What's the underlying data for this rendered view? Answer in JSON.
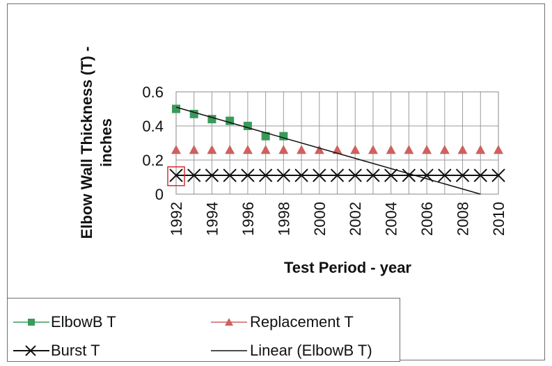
{
  "chart_data": {
    "type": "line",
    "xlabel": "Test Period - year",
    "ylabel": "Elbow Wall Thickness (T) - inches",
    "x": [
      1992,
      1993,
      1994,
      1995,
      1996,
      1997,
      1998,
      1999,
      2000,
      2001,
      2002,
      2003,
      2004,
      2005,
      2006,
      2007,
      2008,
      2009,
      2010
    ],
    "x_tick_labels": [
      "1992",
      "1994",
      "1996",
      "1998",
      "2000",
      "2002",
      "2004",
      "2006",
      "2008",
      "2010"
    ],
    "y_tick_labels": [
      "0",
      "0.2",
      "0.4",
      "0.6"
    ],
    "xlim": [
      1992,
      2010
    ],
    "ylim": [
      0,
      0.6
    ],
    "grid": true,
    "legend_position": "bottom",
    "series": [
      {
        "name": "ElbowB T",
        "marker": "square",
        "color": "#3a9a5a",
        "x": [
          1992,
          1993,
          1994,
          1995,
          1996,
          1997,
          1998
        ],
        "values": [
          0.5,
          0.47,
          0.44,
          0.43,
          0.4,
          0.34,
          0.34
        ]
      },
      {
        "name": "Replacement T",
        "marker": "triangle",
        "color": "#d06060",
        "x": [
          1992,
          1993,
          1994,
          1995,
          1996,
          1997,
          1998,
          1999,
          2000,
          2001,
          2002,
          2003,
          2004,
          2005,
          2006,
          2007,
          2008,
          2009,
          2010
        ],
        "values": [
          0.26,
          0.26,
          0.26,
          0.26,
          0.26,
          0.26,
          0.26,
          0.26,
          0.26,
          0.26,
          0.26,
          0.26,
          0.26,
          0.26,
          0.26,
          0.26,
          0.26,
          0.26,
          0.26
        ]
      },
      {
        "name": "Burst T",
        "marker": "x",
        "color": "#111111",
        "x": [
          1992,
          1993,
          1994,
          1995,
          1996,
          1997,
          1998,
          1999,
          2000,
          2001,
          2002,
          2003,
          2004,
          2005,
          2006,
          2007,
          2008,
          2009,
          2010
        ],
        "values": [
          0.11,
          0.11,
          0.11,
          0.11,
          0.11,
          0.11,
          0.11,
          0.11,
          0.11,
          0.11,
          0.11,
          0.11,
          0.11,
          0.11,
          0.11,
          0.11,
          0.11,
          0.11,
          0.11
        ]
      },
      {
        "name": "Linear (ElbowB T)",
        "marker": "none",
        "color": "#111111",
        "x": [
          1992,
          2009
        ],
        "values": [
          0.51,
          0.0
        ]
      }
    ],
    "annotations": [
      {
        "type": "box",
        "color": "#d03030",
        "x": 1992,
        "y_range": [
          0.05,
          0.16
        ]
      }
    ]
  },
  "legend": {
    "elbowb": "ElbowB T",
    "replacement": "Replacement T",
    "burst": "Burst T",
    "linear": "Linear (ElbowB T)"
  }
}
